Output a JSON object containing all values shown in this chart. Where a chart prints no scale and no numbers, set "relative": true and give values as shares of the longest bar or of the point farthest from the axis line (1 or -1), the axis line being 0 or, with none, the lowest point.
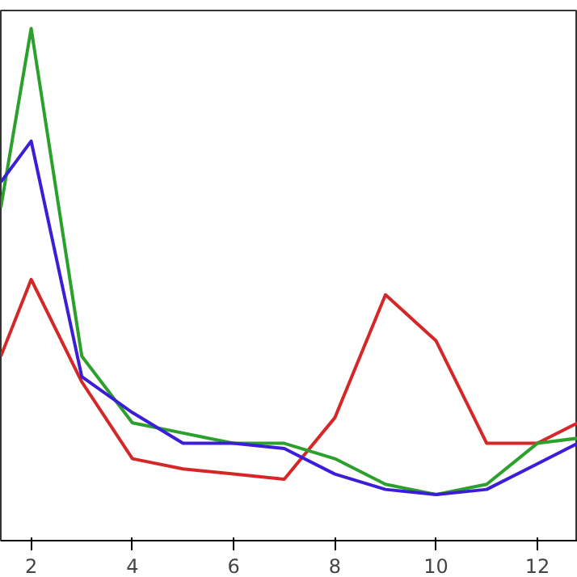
{
  "chart_data": {
    "type": "line",
    "relative": true,
    "x": [
      1.4,
      2,
      3,
      4,
      5,
      6,
      7,
      8,
      9,
      10,
      11,
      12,
      12.8
    ],
    "xlim": [
      1.4,
      12.8
    ],
    "xticks": [
      2,
      4,
      6,
      8,
      10,
      12
    ],
    "grid": false,
    "series": [
      {
        "color": "#d62728",
        "values": [
          0.36,
          0.51,
          0.31,
          0.16,
          0.14,
          0.13,
          0.12,
          0.24,
          0.48,
          0.39,
          0.19,
          0.19,
          0.23
        ]
      },
      {
        "color": "#2ca02c",
        "values": [
          0.65,
          1.0,
          0.36,
          0.23,
          0.21,
          0.19,
          0.19,
          0.16,
          0.11,
          0.09,
          0.11,
          0.19,
          0.2
        ]
      },
      {
        "color": "#3b1fd6",
        "values": [
          0.7,
          0.78,
          0.32,
          0.25,
          0.19,
          0.19,
          0.18,
          0.13,
          0.1,
          0.09,
          0.1,
          0.15,
          0.19
        ]
      }
    ]
  }
}
